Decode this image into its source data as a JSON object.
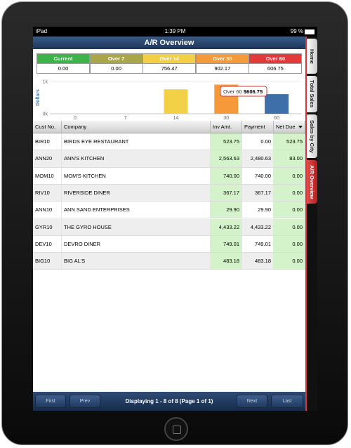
{
  "status_bar": {
    "device": "iPad",
    "time": "1:39 PM",
    "battery": "99 %"
  },
  "header": {
    "title": "A/R Overview"
  },
  "aging": {
    "columns": [
      "Current",
      "Over 7",
      "Over 14",
      "Over 30",
      "Over 60"
    ],
    "colors": [
      "#3cb44a",
      "#a9a64a",
      "#f2cf45",
      "#f49a3a",
      "#e23a3a"
    ],
    "values": [
      "0.00",
      "0.00",
      "756.47",
      "902.17",
      "606.75"
    ]
  },
  "chart": {
    "type": "bar",
    "y_label": "Dollars",
    "categories": [
      "0",
      "7",
      "14",
      "30",
      "60"
    ],
    "values": [
      0,
      0,
      756.47,
      902.17,
      606.75
    ],
    "colors": [
      "#3cb44a",
      "#a9a64a",
      "#f2d147",
      "#f5993a",
      "#3e6fa8"
    ],
    "ylim": [
      0,
      1000
    ],
    "yticks": [
      {
        "value": 0,
        "label": "0k"
      },
      {
        "value": 1000,
        "label": "1k"
      }
    ],
    "tooltip": {
      "label": "Over 60",
      "value": "$606.75"
    }
  },
  "table": {
    "columns": [
      "Cust No.",
      "Company",
      "Inv Amt.",
      "Payment",
      "Net Due"
    ],
    "rows": [
      [
        "BIR10",
        "BIRDS EYE RESTAURANT",
        "523.75",
        "0.00",
        "523.75"
      ],
      [
        "ANN20",
        "ANN'S KITCHEN",
        "2,563.63",
        "2,480.63",
        "83.00"
      ],
      [
        "MOM10",
        "MOM'S KITCHEN",
        "740.00",
        "740.00",
        "0.00"
      ],
      [
        "RIV10",
        "RIVERSIDE DINER",
        "367.17",
        "367.17",
        "0.00"
      ],
      [
        "ANN10",
        "ANN SAND ENTERPRISES",
        "29.90",
        "29.90",
        "0.00"
      ],
      [
        "GYR10",
        "THE GYRO HOUSE",
        "4,433.22",
        "4,433.22",
        "0.00"
      ],
      [
        "DEV10",
        "DEVRO DINER",
        "749.01",
        "749.01",
        "0.00"
      ],
      [
        "BIG10",
        "BIG AL'S",
        "483.18",
        "483.18",
        "0.00"
      ]
    ]
  },
  "pager": {
    "first": "First",
    "prev": "Prev",
    "status": "Displaying 1 - 8 of 8 (Page 1 of 1)",
    "next": "Next",
    "last": "Last"
  },
  "tabs": [
    "Home",
    "Total Sales",
    "Sales by City",
    "A/R Overview"
  ]
}
